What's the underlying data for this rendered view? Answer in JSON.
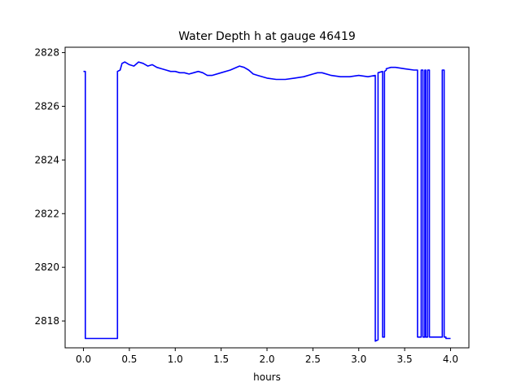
{
  "chart_data": {
    "type": "line",
    "title": "Water Depth h at gauge 46419",
    "xlabel": "hours",
    "ylabel": "",
    "xlim": [
      -0.2,
      4.2
    ],
    "ylim": [
      2817.0,
      2828.2
    ],
    "xticks": [
      0.0,
      0.5,
      1.0,
      1.5,
      2.0,
      2.5,
      3.0,
      3.5,
      4.0
    ],
    "xtick_labels": [
      "0.0",
      "0.5",
      "1.0",
      "1.5",
      "2.0",
      "2.5",
      "3.0",
      "3.5",
      "4.0"
    ],
    "yticks": [
      2818,
      2820,
      2822,
      2824,
      2826,
      2828
    ],
    "ytick_labels": [
      "2818",
      "2820",
      "2822",
      "2824",
      "2826",
      "2828"
    ],
    "grid": false,
    "series": [
      {
        "name": "",
        "color": "#0000ff",
        "x": [
          0.0,
          0.02,
          0.02,
          0.37,
          0.37,
          0.4,
          0.42,
          0.45,
          0.5,
          0.55,
          0.6,
          0.65,
          0.7,
          0.75,
          0.8,
          0.85,
          0.9,
          0.95,
          1.0,
          1.05,
          1.1,
          1.15,
          1.2,
          1.25,
          1.3,
          1.35,
          1.4,
          1.5,
          1.6,
          1.7,
          1.75,
          1.8,
          1.85,
          1.9,
          2.0,
          2.1,
          2.2,
          2.3,
          2.4,
          2.5,
          2.55,
          2.6,
          2.7,
          2.8,
          2.9,
          3.0,
          3.1,
          3.18,
          3.18,
          3.21,
          3.21,
          3.26,
          3.26,
          3.28,
          3.28,
          3.3,
          3.3,
          3.35,
          3.4,
          3.5,
          3.6,
          3.64,
          3.64,
          3.68,
          3.68,
          3.7,
          3.7,
          3.72,
          3.72,
          3.73,
          3.73,
          3.75,
          3.75,
          3.77,
          3.77,
          3.91,
          3.91,
          3.93,
          3.93,
          3.95,
          3.95,
          4.0
        ],
        "y": [
          2827.3,
          2827.3,
          2817.35,
          2817.35,
          2827.3,
          2827.35,
          2827.6,
          2827.65,
          2827.55,
          2827.5,
          2827.65,
          2827.6,
          2827.5,
          2827.55,
          2827.45,
          2827.4,
          2827.35,
          2827.3,
          2827.3,
          2827.25,
          2827.25,
          2827.2,
          2827.25,
          2827.3,
          2827.25,
          2827.15,
          2827.15,
          2827.25,
          2827.35,
          2827.5,
          2827.45,
          2827.35,
          2827.2,
          2827.15,
          2827.05,
          2827.0,
          2827.0,
          2827.05,
          2827.1,
          2827.2,
          2827.25,
          2827.25,
          2827.15,
          2827.1,
          2827.1,
          2827.15,
          2827.1,
          2827.15,
          2817.25,
          2817.3,
          2827.25,
          2827.3,
          2817.4,
          2817.4,
          2827.3,
          2827.35,
          2827.4,
          2827.45,
          2827.45,
          2827.4,
          2827.35,
          2827.35,
          2817.4,
          2817.4,
          2827.35,
          2827.35,
          2817.4,
          2817.4,
          2827.35,
          2827.35,
          2817.4,
          2817.4,
          2827.35,
          2827.35,
          2817.4,
          2817.4,
          2827.35,
          2827.35,
          2817.4,
          2817.4,
          2817.35,
          2817.35
        ]
      }
    ]
  }
}
